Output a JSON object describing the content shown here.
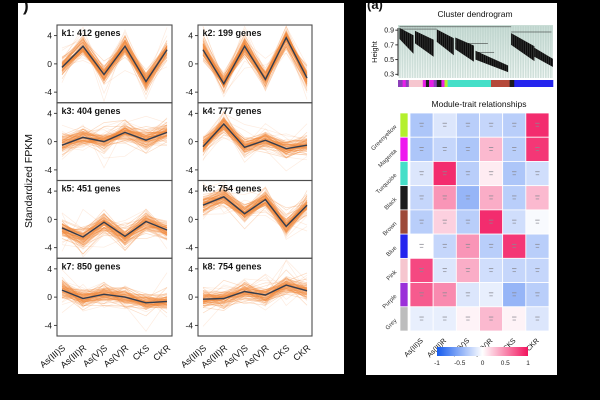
{
  "figure": {
    "panel_b_label": ")",
    "panel_a_label": "(a)"
  },
  "chart_data": [
    {
      "type": "line",
      "panel": "b",
      "description": "k-means clusters of standardized gene expression, orange member traces with dark mean line",
      "ylabel": "Standardized FPKM",
      "yticks": [
        4,
        0,
        -4
      ],
      "ylim": [
        -5.5,
        5.5
      ],
      "x_categories": [
        "As(III)S",
        "As(III)R",
        "As(V)S",
        "As(V)R",
        "CKS",
        "CKR"
      ],
      "line_color": "#f28b3f",
      "mean_line_color": "#333c4d",
      "subplots": [
        {
          "title": "k1: 412 genes",
          "genes": 412,
          "mean": [
            -0.5,
            2.5,
            -1.5,
            2.5,
            -2.5,
            2.0
          ]
        },
        {
          "title": "k2: 199 genes",
          "genes": 199,
          "mean": [
            2.0,
            -2.8,
            2.5,
            -2.2,
            3.7,
            -2.0
          ]
        },
        {
          "title": "k3: 404 genes",
          "genes": 404,
          "mean": [
            -0.5,
            0.6,
            0.0,
            1.3,
            0.2,
            1.3
          ]
        },
        {
          "title": "k4: 777 genes",
          "genes": 777,
          "mean": [
            -0.7,
            2.5,
            -0.8,
            0.2,
            -1.0,
            -0.5
          ]
        },
        {
          "title": "k5: 451 genes",
          "genes": 451,
          "mean": [
            -1.2,
            -2.5,
            -0.4,
            -2.4,
            -0.3,
            -1.5
          ]
        },
        {
          "title": "k6: 754 genes",
          "genes": 754,
          "mean": [
            2.0,
            3.2,
            0.8,
            2.8,
            -1.0,
            2.0
          ]
        },
        {
          "title": "k7: 850 genes",
          "genes": 850,
          "mean": [
            1.0,
            -0.2,
            0.4,
            0.0,
            -0.8,
            -0.6
          ]
        },
        {
          "title": "k8: 754 genes",
          "genes": 754,
          "mean": [
            -0.3,
            -0.2,
            0.8,
            0.3,
            1.7,
            0.9
          ]
        }
      ]
    },
    {
      "type": "line",
      "subtype": "dendrogram",
      "panel": "a",
      "title": "Cluster dendrogram",
      "ylabel": "Height",
      "yticks": [
        0.9,
        0.7,
        0.5,
        0.3
      ],
      "ylim": [
        0.25,
        0.97
      ],
      "clusters": [
        {
          "x0": 0.01,
          "x1": 0.1,
          "t0": 0.93,
          "t1": 0.83,
          "b0": 0.78,
          "b1": 0.58
        },
        {
          "x0": 0.11,
          "x1": 0.23,
          "t0": 0.89,
          "t1": 0.77,
          "b0": 0.72,
          "b1": 0.54
        },
        {
          "x0": 0.25,
          "x1": 0.36,
          "t0": 0.91,
          "t1": 0.79,
          "b0": 0.74,
          "b1": 0.56
        },
        {
          "x0": 0.37,
          "x1": 0.49,
          "t0": 0.8,
          "t1": 0.69,
          "b0": 0.64,
          "b1": 0.47
        },
        {
          "x0": 0.5,
          "x1": 0.71,
          "t0": 0.62,
          "t1": 0.42,
          "b0": 0.5,
          "b1": 0.33
        },
        {
          "x0": 0.73,
          "x1": 0.88,
          "t0": 0.86,
          "t1": 0.68,
          "b0": 0.7,
          "b1": 0.48
        },
        {
          "x0": 0.88,
          "x1": 1.0,
          "t0": 0.66,
          "t1": 0.51,
          "b0": 0.54,
          "b1": 0.4
        }
      ],
      "connectors": [
        {
          "h": 0.945,
          "x0": 0.01,
          "x1": 0.73
        },
        {
          "h": 0.915,
          "x0": 0.01,
          "x1": 0.25
        },
        {
          "h": 0.72,
          "x0": 0.37,
          "x1": 0.58
        },
        {
          "h": 0.6,
          "x0": 0.5,
          "x1": 0.62
        },
        {
          "h": 0.875,
          "x0": 0.73,
          "x1": 0.99
        }
      ],
      "module_bar": [
        {
          "color": "#8b3fb8",
          "w": 3
        },
        {
          "color": "#e81ee8",
          "w": 2
        },
        {
          "color": "#8b3fb8",
          "w": 2
        },
        {
          "color": "#f6c6cf",
          "w": 9
        },
        {
          "color": "#e81ee8",
          "w": 2
        },
        {
          "color": "#1c1c1c",
          "w": 2
        },
        {
          "color": "#e81ee8",
          "w": 3
        },
        {
          "color": "#8b3fb8",
          "w": 2
        },
        {
          "color": "#1c1c1c",
          "w": 3
        },
        {
          "color": "#e81ee8",
          "w": 2
        },
        {
          "color": "#b4f02c",
          "w": 2
        },
        {
          "color": "#45dfc8",
          "w": 28
        },
        {
          "color": "#b5493a",
          "w": 12
        },
        {
          "color": "#1c1c1c",
          "w": 3
        },
        {
          "color": "#2525ee",
          "w": 25
        }
      ]
    },
    {
      "type": "heatmap",
      "panel": "a",
      "title": "Module-trait relationships",
      "columns": [
        "As(III)S",
        "As(III)R",
        "As(V)S",
        "As(V)R",
        "CKS",
        "CKR"
      ],
      "rows": [
        "Greenyellow",
        "Magenta",
        "Turquoise",
        "Black",
        "Brown",
        "Blue",
        "Pink",
        "Purple",
        "Grey"
      ],
      "row_colors": [
        "#b4f02c",
        "#ee18ee",
        "#45dfc8",
        "#1c1c1c",
        "#9e4a38",
        "#2525ee",
        "#f6c6cf",
        "#9b30d9",
        "#bdbdbd"
      ],
      "values": [
        [
          -0.35,
          -0.15,
          -0.3,
          -0.25,
          -0.3,
          0.9
        ],
        [
          -0.35,
          -0.25,
          -0.35,
          0.3,
          -0.3,
          0.85
        ],
        [
          -0.15,
          0.9,
          -0.3,
          0.08,
          -0.35,
          -0.2
        ],
        [
          -0.25,
          0.45,
          -0.45,
          0.35,
          -0.3,
          0.3
        ],
        [
          -0.3,
          0.2,
          -0.3,
          0.9,
          -0.2,
          -0.03
        ],
        [
          0.0,
          -0.25,
          0.45,
          -0.3,
          0.85,
          -0.3
        ],
        [
          0.78,
          -0.15,
          0.35,
          -0.2,
          -0.25,
          -0.25
        ],
        [
          0.7,
          0.5,
          -0.15,
          -0.1,
          -0.45,
          -0.3
        ],
        [
          -0.1,
          -0.1,
          0.05,
          0.3,
          0.05,
          -0.15
        ]
      ],
      "colorbar": {
        "ticks": [
          "-1",
          "-0.5",
          "0",
          "0.5",
          "1"
        ],
        "min_color": "#155bee",
        "mid_color": "#ffffff",
        "max_color": "#f2145e"
      }
    }
  ]
}
